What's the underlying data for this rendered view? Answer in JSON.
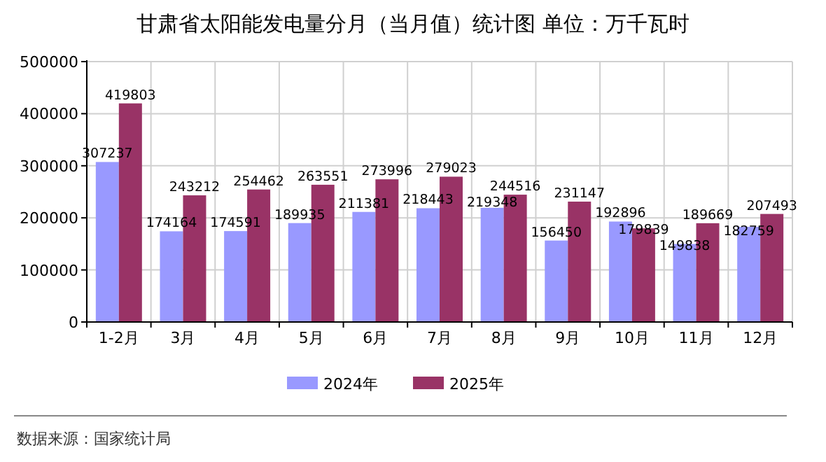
{
  "chart_data": {
    "type": "bar",
    "title": "甘肃省太阳能发电量分月（当月值）统计图  单位：万千瓦时",
    "categories": [
      "1-2月",
      "3月",
      "4月",
      "5月",
      "6月",
      "7月",
      "8月",
      "9月",
      "10月",
      "11月",
      "12月"
    ],
    "series": [
      {
        "name": "2024年",
        "color": "#9999ff",
        "values": [
          307237,
          174164,
          174591,
          189935,
          211381,
          218443,
          219348,
          156450,
          192896,
          149838,
          182759
        ]
      },
      {
        "name": "2025年",
        "color": "#993366",
        "values": [
          419803,
          243212,
          254462,
          263551,
          273996,
          279023,
          244516,
          231147,
          179839,
          189669,
          207493
        ]
      }
    ],
    "ylim": [
      0,
      500000
    ],
    "yticks": [
      0,
      100000,
      200000,
      300000,
      400000,
      500000
    ],
    "grid": true,
    "legend": "bottom",
    "data_labels": true,
    "annotations": [
      "数据来源：国家统计局"
    ]
  }
}
